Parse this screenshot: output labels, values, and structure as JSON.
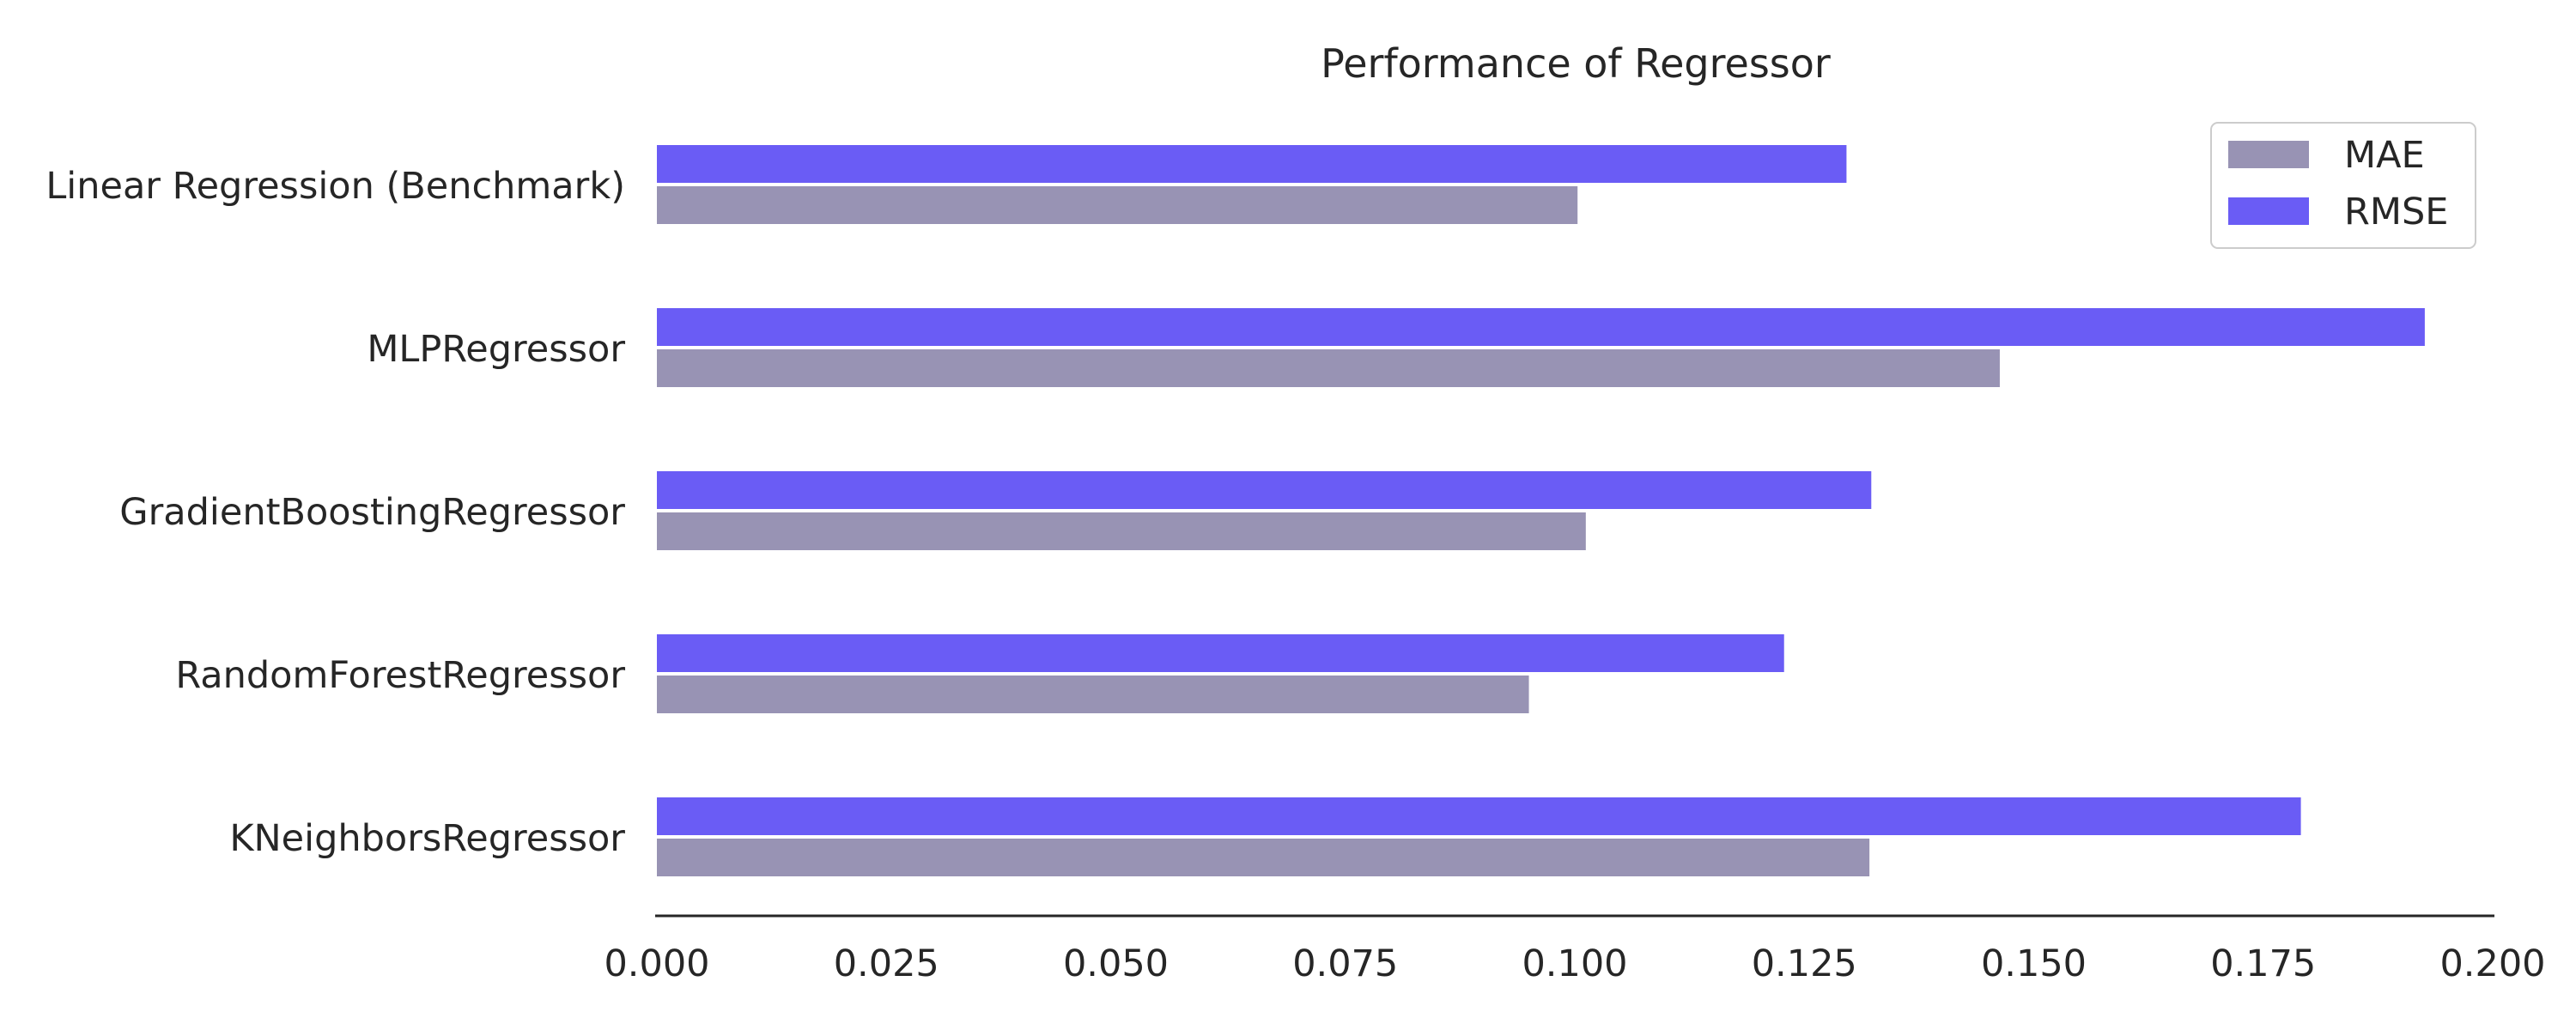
{
  "chart_data": {
    "type": "bar",
    "orientation": "horizontal",
    "title": "Performance of Regressor",
    "xlabel": "",
    "ylabel": "",
    "categories": [
      "Linear Regression (Benchmark)",
      "MLPRegressor",
      "GradientBoostingRegressor",
      "RandomForestRegressor",
      "KNeighborsRegressor"
    ],
    "series": [
      {
        "name": "MAE",
        "color": "#9893b4",
        "values": [
          0.1003,
          0.1463,
          0.1012,
          0.095,
          0.1321
        ]
      },
      {
        "name": "RMSE",
        "color": "#6a5cf5",
        "values": [
          0.1296,
          0.1926,
          0.1323,
          0.1228,
          0.1791
        ]
      }
    ],
    "xlim": [
      0,
      0.2
    ],
    "xticks": [
      "0.000",
      "0.025",
      "0.050",
      "0.075",
      "0.100",
      "0.125",
      "0.150",
      "0.175",
      "0.200"
    ],
    "grid": false,
    "legend": {
      "position": "top-right"
    }
  }
}
